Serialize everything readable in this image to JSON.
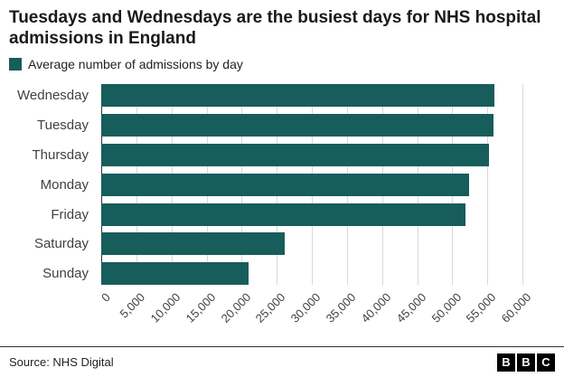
{
  "header": {
    "title": "Tuesdays and Wednesdays are the busiest days for NHS hospital admissions in England"
  },
  "legend": {
    "label": "Average number of admissions by day",
    "swatch_color": "#175d5b"
  },
  "chart_data": {
    "type": "bar",
    "orientation": "horizontal",
    "title": "Tuesdays and Wednesdays are the busiest days for NHS hospital admissions in England",
    "legend_label": "Average number of admissions by day",
    "categories": [
      "Wednesday",
      "Tuesday",
      "Thursday",
      "Monday",
      "Friday",
      "Saturday",
      "Sunday"
    ],
    "values": [
      56000,
      55900,
      55300,
      52400,
      51900,
      26100,
      21000
    ],
    "xlabel": "",
    "ylabel": "",
    "xlim": [
      0,
      60000
    ],
    "xticks": [
      0,
      5000,
      10000,
      15000,
      20000,
      25000,
      30000,
      35000,
      40000,
      45000,
      50000,
      55000,
      60000
    ],
    "xtick_labels": [
      "0",
      "5,000",
      "10,000",
      "15,000",
      "20,000",
      "25,000",
      "30,000",
      "35,000",
      "40,000",
      "45,000",
      "50,000",
      "55,000",
      "60,000"
    ],
    "bar_color": "#175d5b",
    "grid": true,
    "legend_position": "top-left"
  },
  "footer": {
    "source": "Source: NHS Digital",
    "logo_letters": [
      "B",
      "B",
      "C"
    ]
  }
}
